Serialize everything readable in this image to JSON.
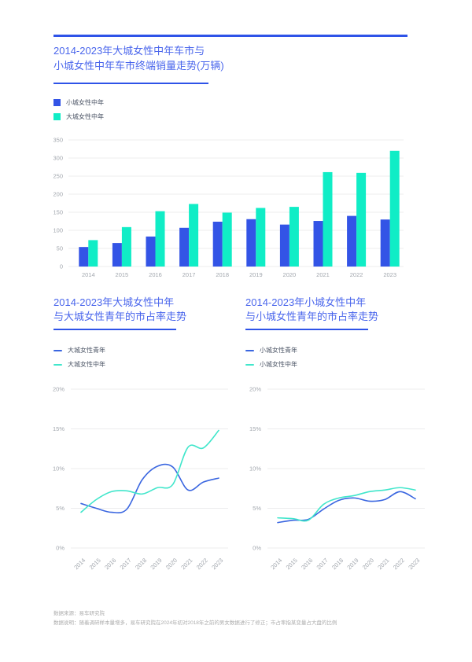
{
  "theme": {
    "accent_blue": "#2E53E8",
    "title_blue": "#4A66EC",
    "bar_blue": "#3354E6",
    "bar_teal": "#10EDC6",
    "line_blue": "#3A66E0",
    "line_teal": "#41E6CB",
    "axis_label_grey": "#A2A7AE",
    "legend_label_grey": "#4C5566",
    "grid_grey": "#ECECEE",
    "footer_grey": "#ACACAC"
  },
  "chart_data": [
    {
      "id": "sales-bar-chart",
      "type": "bar",
      "title_line1": "2014-2023年大城女性中年车市与",
      "title_line2": "小城女性中年车市终端销量走势(万辆)",
      "unit": "万辆",
      "categories": [
        "2014",
        "2015",
        "2016",
        "2017",
        "2018",
        "2019",
        "2020",
        "2021",
        "2022",
        "2023"
      ],
      "series": [
        {
          "name": "小城女性中年",
          "color": "#3354E6",
          "values": [
            54,
            65,
            83,
            107,
            124,
            131,
            116,
            126,
            140,
            130
          ]
        },
        {
          "name": "大城女性中年",
          "color": "#10EDC6",
          "values": [
            73,
            109,
            153,
            173,
            149,
            162,
            165,
            261,
            259,
            320
          ]
        }
      ],
      "ylim": [
        0,
        350
      ],
      "ytick_values": [
        0,
        50,
        100,
        150,
        200,
        250,
        300,
        350
      ],
      "ytick_labels": [
        "0",
        "50",
        "100",
        "150",
        "200",
        "250",
        "300",
        "350"
      ],
      "grid": true,
      "legend_position": "top-left"
    },
    {
      "id": "big-city-share-line-chart",
      "type": "line",
      "title_line1": "2014-2023年大城女性中年",
      "title_line2": "与大城女性青年的市占率走势",
      "categories": [
        "2014",
        "2015",
        "2016",
        "2017",
        "2018",
        "2019",
        "2020",
        "2021",
        "2022",
        "2023"
      ],
      "series": [
        {
          "name": "大城女性青年",
          "color": "#3A66E0",
          "values": [
            5.6,
            5.0,
            4.5,
            4.9,
            8.6,
            10.3,
            10.2,
            7.3,
            8.3,
            8.8
          ]
        },
        {
          "name": "大城女性中年",
          "color": "#41E6CB",
          "values": [
            4.5,
            6.1,
            7.1,
            7.2,
            6.8,
            7.6,
            8.0,
            12.7,
            12.6,
            14.8
          ]
        }
      ],
      "ylim": [
        0,
        20
      ],
      "ytick_values": [
        0,
        5,
        10,
        15,
        20
      ],
      "ytick_labels": [
        "0%",
        "5%",
        "10%",
        "15%",
        "20%"
      ],
      "grid": true,
      "legend_position": "top-left"
    },
    {
      "id": "small-city-share-line-chart",
      "type": "line",
      "title_line1": "2014-2023年小城女性中年",
      "title_line2": "与小城女性青年的市占率走势",
      "categories": [
        "2014",
        "2015",
        "2016",
        "2017",
        "2018",
        "2019",
        "2020",
        "2021",
        "2022",
        "2023"
      ],
      "series": [
        {
          "name": "小城女性青年",
          "color": "#3A66E0",
          "values": [
            3.2,
            3.5,
            3.6,
            4.9,
            6.0,
            6.3,
            5.9,
            6.1,
            7.1,
            6.2
          ]
        },
        {
          "name": "小城女性中年",
          "color": "#41E6CB",
          "values": [
            3.8,
            3.7,
            3.5,
            5.5,
            6.3,
            6.6,
            7.1,
            7.3,
            7.6,
            7.3
          ]
        }
      ],
      "ylim": [
        0,
        20
      ],
      "ytick_values": [
        0,
        5,
        10,
        15,
        20
      ],
      "ytick_labels": [
        "0%",
        "5%",
        "10%",
        "15%",
        "20%"
      ],
      "grid": true,
      "legend_position": "top-left"
    }
  ],
  "footer": {
    "source": "数据来源：易车研究院",
    "note": "数据说明：随着调研样本量增多，易车研究院在2024年初对2018年之前的男女数据进行了修正；市占率指某变量占大盘的比例"
  }
}
